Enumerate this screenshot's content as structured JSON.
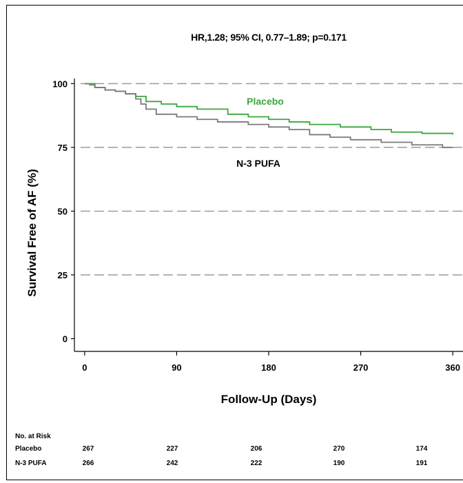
{
  "chart_data": {
    "type": "line",
    "title": "HR,1.28; 95% CI, 0.77–1.89; p=0.171",
    "xlabel": "Follow-Up (Days)",
    "ylabel": "Survival Free of AF (%)",
    "xlim": [
      -10,
      370
    ],
    "ylim": [
      -5,
      102
    ],
    "x_ticks": [
      0,
      90,
      180,
      270,
      360
    ],
    "y_ticks": [
      0,
      25,
      50,
      75,
      100
    ],
    "grid": "horizontal dashed",
    "series": [
      {
        "name": "Placebo",
        "color": "#3aa63a",
        "points": [
          [
            0,
            100
          ],
          [
            5,
            99.5
          ],
          [
            10,
            98.5
          ],
          [
            20,
            97.5
          ],
          [
            30,
            97
          ],
          [
            40,
            96
          ],
          [
            50,
            95
          ],
          [
            60,
            93
          ],
          [
            75,
            92
          ],
          [
            90,
            91
          ],
          [
            110,
            90
          ],
          [
            140,
            88
          ],
          [
            160,
            87
          ],
          [
            180,
            86
          ],
          [
            200,
            85
          ],
          [
            220,
            84
          ],
          [
            250,
            83
          ],
          [
            280,
            82
          ],
          [
            300,
            81
          ],
          [
            330,
            80.5
          ],
          [
            360,
            80
          ]
        ]
      },
      {
        "name": "N-3 PUFA",
        "color": "#7a7a7a",
        "points": [
          [
            0,
            100
          ],
          [
            10,
            98.5
          ],
          [
            20,
            97.5
          ],
          [
            30,
            97
          ],
          [
            40,
            96
          ],
          [
            50,
            94
          ],
          [
            55,
            92
          ],
          [
            60,
            90
          ],
          [
            70,
            88
          ],
          [
            90,
            87
          ],
          [
            110,
            86
          ],
          [
            130,
            85
          ],
          [
            160,
            84
          ],
          [
            180,
            83
          ],
          [
            200,
            82
          ],
          [
            220,
            80
          ],
          [
            240,
            79
          ],
          [
            260,
            78
          ],
          [
            290,
            77
          ],
          [
            320,
            76
          ],
          [
            340,
            76
          ],
          [
            350,
            75
          ],
          [
            360,
            75
          ]
        ]
      }
    ],
    "risk_table": {
      "header": "No. at Risk",
      "rows": [
        {
          "label": "Placebo",
          "values": [
            "267",
            "227",
            "206",
            "270",
            "174"
          ]
        },
        {
          "label": "N-3 PUFA",
          "values": [
            "266",
            "242",
            "222",
            "190",
            "191"
          ]
        }
      ]
    }
  }
}
